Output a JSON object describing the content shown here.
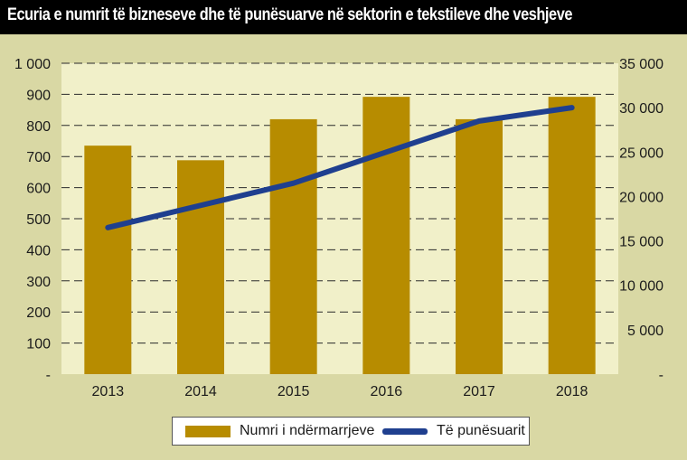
{
  "title": "Ecuria e numrit të bizneseve dhe të punësuarve në sektorin e tekstileve dhe veshjeve",
  "colors": {
    "background": "#d9d8a4",
    "bar": "#b78c00",
    "line": "#1f3f8f",
    "title_bg": "#000000"
  },
  "chart_data": {
    "type": "bar",
    "categories": [
      "2013",
      "2014",
      "2015",
      "2016",
      "2017",
      "2018"
    ],
    "series": [
      {
        "name": "Numri i ndërmarrjeve",
        "type": "bar",
        "axis": "left",
        "values": [
          735,
          688,
          820,
          892,
          820,
          892
        ]
      },
      {
        "name": "Të punësuarit",
        "type": "line",
        "axis": "right",
        "values": [
          16500,
          19000,
          21500,
          25000,
          28500,
          30000
        ]
      }
    ],
    "y_left": {
      "lim": [
        0,
        1000
      ],
      "ticks": [
        0,
        100,
        200,
        300,
        400,
        500,
        600,
        700,
        800,
        900,
        1000
      ],
      "tick_labels": [
        "-",
        "100",
        "200",
        "300",
        "400",
        "500",
        "600",
        "700",
        "800",
        "900",
        "1 000"
      ]
    },
    "y_right": {
      "lim": [
        0,
        35000
      ],
      "ticks": [
        0,
        5000,
        10000,
        15000,
        20000,
        25000,
        30000,
        35000
      ],
      "tick_labels": [
        "-",
        "5 000",
        "10 000",
        "15 000",
        "20 000",
        "25 000",
        "30 000",
        "35 000"
      ]
    },
    "grid": true,
    "legend_position": "bottom"
  }
}
